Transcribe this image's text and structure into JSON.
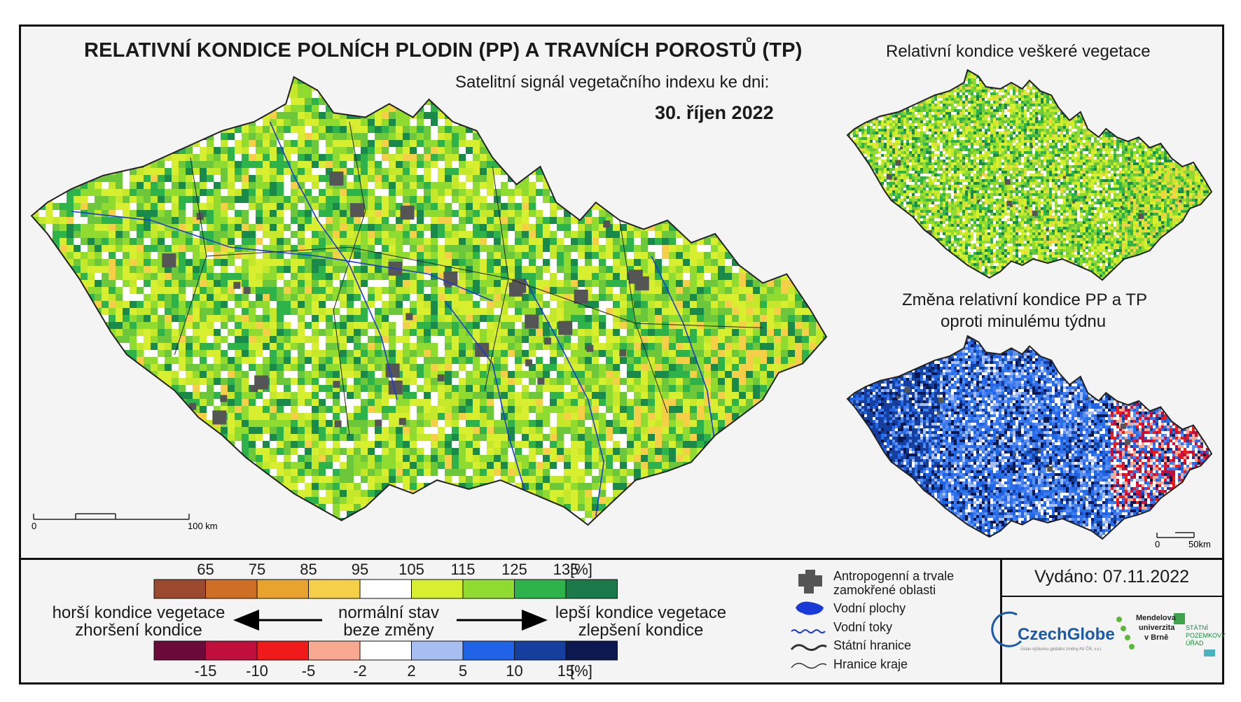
{
  "header": {
    "title": "RELATIVNÍ KONDICE POLNÍCH PLODIN (PP) A TRAVNÍCH POROSTŮ (TP)",
    "subtitle": "Satelitní signál vegetačního indexu ke dni:",
    "date": "30. říjen 2022"
  },
  "right_maps": {
    "top_title": "Relativní kondice veškeré vegetace",
    "bottom_title_line1": "Změna relativní kondice PP a TP",
    "bottom_title_line2": "oproti minulému týdnu"
  },
  "scalebars": {
    "main_start": "0",
    "main_end": "100 km",
    "small_start": "0",
    "small_end": "50km"
  },
  "colorbar_condition": {
    "labels": [
      "65",
      "75",
      "85",
      "95",
      "105",
      "115",
      "125",
      "135",
      "[%]"
    ],
    "colors": [
      "#9b4a2f",
      "#cf6f26",
      "#e8a32e",
      "#f5cf48",
      "#ffffff",
      "#d7ef2f",
      "#8fdb2f",
      "#2eb24a",
      "#1a7a4a"
    ]
  },
  "colorbar_change": {
    "labels": [
      "-15",
      "-10",
      "-5",
      "-2",
      "2",
      "5",
      "10",
      "15",
      "[%]"
    ],
    "colors": [
      "#6b0a3a",
      "#c10f3c",
      "#f01a1a",
      "#f9a98f",
      "#ffffff",
      "#a6bff0",
      "#1f63e6",
      "#143f9e",
      "#0c1850"
    ]
  },
  "legend_text": {
    "worse_line1": "horší kondice vegetace",
    "worse_line2": "zhoršení kondice",
    "normal_line1": "normální stav",
    "normal_line2": "beze změny",
    "better_line1": "lepší kondice vegetace",
    "better_line2": "zlepšení kondice"
  },
  "map_legend": {
    "anthropogenic_line1": "Antropogenní a trvale",
    "anthropogenic_line2": "zamokřené oblasti",
    "water_areas": "Vodní plochy",
    "water_streams": "Vodní toky",
    "state_border": "Státní hranice",
    "region_border": "Hranice kraje"
  },
  "issued": "Vydáno: 07.11.2022",
  "logos": {
    "czechglobe": "CzechGlobe",
    "czechglobe_sub": "Ústav výzkumu globální změny AV ČR, v.v.i.",
    "mendel_line1": "Mendelova",
    "mendel_line2": "univerzita",
    "mendel_line3": "v Brně",
    "spu_line1": "STÁTNÍ",
    "spu_line2": "POZEMKOVÝ",
    "spu_line3": "ÚŘAD"
  },
  "map_palette": {
    "condition": [
      "#ffffff",
      "#d7ef2f",
      "#c6e82a",
      "#8fdb2f",
      "#6cc83a",
      "#2eb24a",
      "#1a8a4a",
      "#f5cf48",
      "#e8a32e"
    ],
    "change": [
      "#1f63e6",
      "#2a6fe8",
      "#143f9e",
      "#3d7cf0",
      "#a6bff0",
      "#ffffff",
      "#0c1850",
      "#5b8ff0"
    ],
    "change_red": [
      "#f01a1a",
      "#c10f3c",
      "#f9a98f",
      "#ffffff"
    ],
    "urban": "#555555",
    "river": "#1a3ad8",
    "border": "#222222"
  }
}
